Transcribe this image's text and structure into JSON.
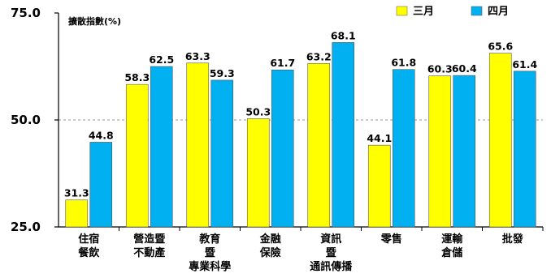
{
  "chart_data": {
    "type": "bar",
    "ylabel": "擴散指數(%)",
    "ylim": [
      25,
      75
    ],
    "yticks": [
      "75.0",
      "50.0",
      "25.0"
    ],
    "ytick_values": [
      75,
      50,
      25
    ],
    "reference_line": 50,
    "categories": [
      [
        "住宿",
        "餐飲"
      ],
      [
        "營造暨",
        "不動產"
      ],
      [
        "教育",
        "暨",
        "專業科學"
      ],
      [
        "金融",
        "保險"
      ],
      [
        "資訊",
        "暨",
        "通訊傳播"
      ],
      [
        "零售"
      ],
      [
        "運輸",
        "倉儲"
      ],
      [
        "批發"
      ]
    ],
    "series": [
      {
        "name": "三月",
        "color": "#FFFF00",
        "values": [
          31.3,
          58.3,
          63.3,
          50.3,
          63.2,
          44.1,
          60.3,
          65.6
        ],
        "labels": [
          "31.3",
          "58.3",
          "63.3",
          "50.3",
          "63.2",
          "44.1",
          "60.3",
          "65.6"
        ]
      },
      {
        "name": "四月",
        "color": "#00B0F0",
        "values": [
          44.8,
          62.5,
          59.3,
          61.7,
          68.1,
          61.8,
          60.4,
          61.4
        ],
        "labels": [
          "44.8",
          "62.5",
          "59.3",
          "61.7",
          "68.1",
          "61.8",
          "60.4",
          "61.4"
        ]
      }
    ],
    "legend_position": "top-right"
  }
}
